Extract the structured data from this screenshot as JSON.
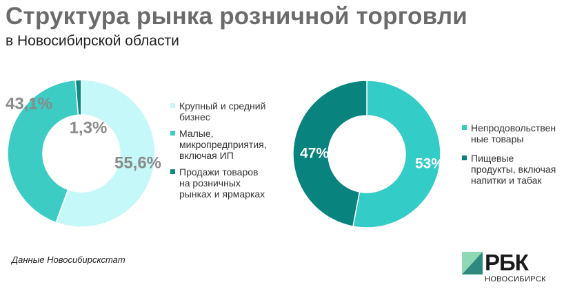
{
  "title": "Структура рынка розничной торговли",
  "subtitle": "в Новосибирской области",
  "source": "Данные Новосибирскстат",
  "logo": {
    "name": "РБК",
    "region": "НОВОСИБИРСК"
  },
  "chart_data": [
    {
      "type": "pie",
      "donut": true,
      "series": [
        {
          "values": [
            55.6,
            43.1,
            1.3
          ],
          "labels": [
            "55,6%",
            "43,1%",
            "1,3%"
          ]
        }
      ],
      "categories": [
        "Крупный и средний бизнес",
        "Малые, микропредприятия, включая ИП",
        "Продажи товаров на розничных рынках и ярмарках"
      ],
      "colors": [
        "#c5f8f8",
        "#3cccc4",
        "#0c8a84"
      ],
      "label_color": "#8a8a8a",
      "legend_position": "right"
    },
    {
      "type": "pie",
      "donut": true,
      "series": [
        {
          "values": [
            53,
            47
          ],
          "labels": [
            "53%",
            "47%"
          ]
        }
      ],
      "categories": [
        "Непродовольственные товары",
        "Пищевые продукты, включая напитки и табак"
      ],
      "colors": [
        "#33ccc6",
        "#08837e"
      ],
      "label_color": "#ffffff",
      "legend_position": "right"
    }
  ]
}
